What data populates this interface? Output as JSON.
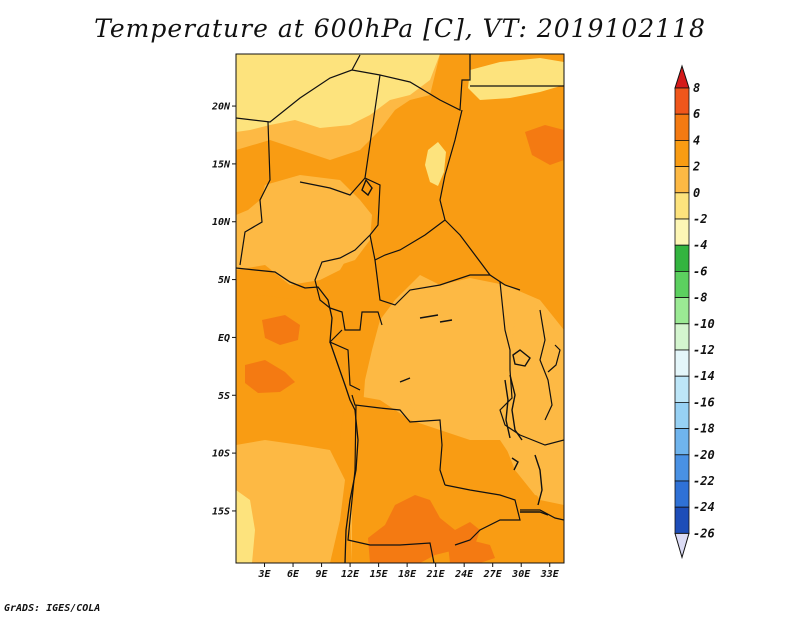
{
  "title": "Temperature at 600hPa [C], VT: 2019102118",
  "credit": "GrADS: IGES/COLA",
  "map": {
    "lon_range": [
      0,
      34.5
    ],
    "lat_range": [
      -19.5,
      24.5
    ],
    "lat_labels": [
      {
        "lat": 20,
        "label": "20N"
      },
      {
        "lat": 15,
        "label": "15N"
      },
      {
        "lat": 10,
        "label": "10N"
      },
      {
        "lat": 5,
        "label": "5N"
      },
      {
        "lat": 0,
        "label": "EQ"
      },
      {
        "lat": -5,
        "label": "5S"
      },
      {
        "lat": -10,
        "label": "10S"
      },
      {
        "lat": -15,
        "label": "15S"
      }
    ],
    "lon_labels": [
      {
        "lon": 3,
        "label": "3E"
      },
      {
        "lon": 6,
        "label": "6E"
      },
      {
        "lon": 9,
        "label": "9E"
      },
      {
        "lon": 12,
        "label": "12E"
      },
      {
        "lon": 15,
        "label": "15E"
      },
      {
        "lon": 18,
        "label": "18E"
      },
      {
        "lon": 21,
        "label": "21E"
      },
      {
        "lon": 24,
        "label": "24E"
      },
      {
        "lon": 27,
        "label": "27E"
      },
      {
        "lon": 30,
        "label": "30E"
      },
      {
        "lon": 33,
        "label": "33E"
      }
    ],
    "colors": {
      "c_n2_0": "#fde37d",
      "c_0_2": "#fdb944",
      "c_2_4": "#f99c13",
      "c_4_6": "#f47a12",
      "c_6_8": "#e9531a"
    }
  },
  "colorbar": {
    "labels": [
      "8",
      "6",
      "4",
      "2",
      "0",
      "-2",
      "-4",
      "-6",
      "-8",
      "-10",
      "-12",
      "-14",
      "-16",
      "-18",
      "-20",
      "-22",
      "-24",
      "-26"
    ],
    "top_color": "#d41a1a",
    "bottom_color": "#dcdcf5",
    "segments": [
      "#e6310f",
      "#f0561b",
      "#f47a12",
      "#f99c13",
      "#fdb944",
      "#fde37d",
      "#fdf6b5",
      "#33b43f",
      "#5cd05f",
      "#9bea94",
      "#d4f5cf",
      "#e4f6fa",
      "#bde6f8",
      "#97d1f4",
      "#6fb4ed",
      "#4991e4",
      "#2f71d6",
      "#1d4db8",
      "#162e90",
      "#0e1670"
    ]
  }
}
